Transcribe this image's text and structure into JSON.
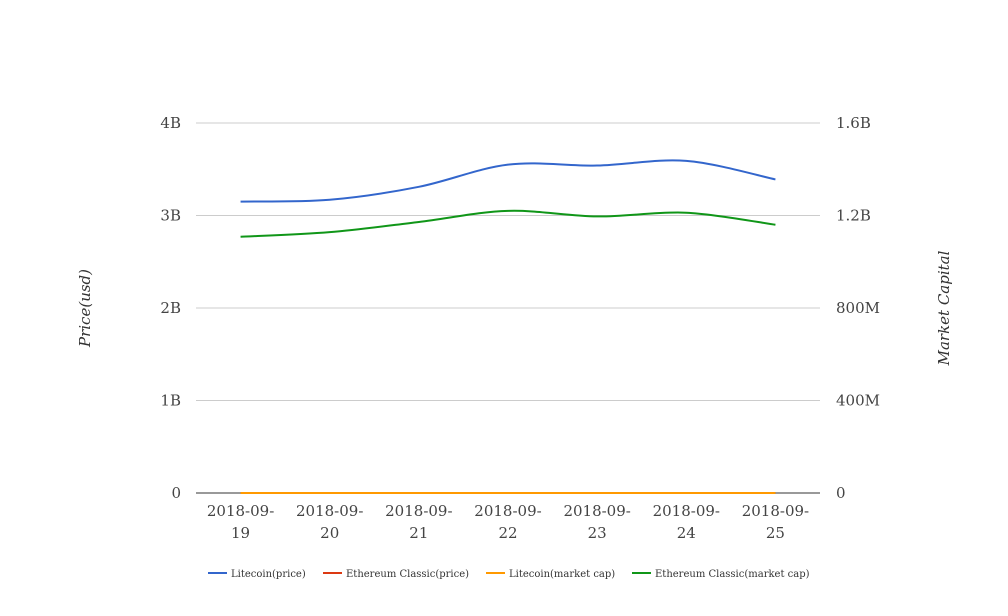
{
  "chart_data": {
    "type": "line",
    "x": [
      "2018-09-19",
      "2018-09-20",
      "2018-09-21",
      "2018-09-22",
      "2018-09-23",
      "2018-09-24",
      "2018-09-25"
    ],
    "x_tick_lines": [
      [
        "2018-09-",
        "19"
      ],
      [
        "2018-09-",
        "20"
      ],
      [
        "2018-09-",
        "21"
      ],
      [
        "2018-09-",
        "22"
      ],
      [
        "2018-09-",
        "23"
      ],
      [
        "2018-09-",
        "24"
      ],
      [
        "2018-09-",
        "25"
      ]
    ],
    "ylabel": "Price(usd)",
    "y2label": "Market Capital",
    "ylim": [
      0,
      4000000000
    ],
    "y2lim": [
      0,
      1600000000
    ],
    "y_ticks": [
      0,
      1000000000,
      2000000000,
      3000000000,
      4000000000
    ],
    "y_tick_labels": [
      "0",
      "1B",
      "2B",
      "3B",
      "4B"
    ],
    "y2_ticks": [
      0,
      400000000,
      800000000,
      1200000000,
      1600000000
    ],
    "y2_tick_labels": [
      "0",
      "400M",
      "800M",
      "1.2B",
      "1.6B"
    ],
    "grid": true,
    "legend_position": "bottom",
    "series": [
      {
        "name": "Litecoin(price)",
        "axis": "left",
        "color": "#3366cc",
        "values": [
          3150000000,
          3170000000,
          3310000000,
          3550000000,
          3540000000,
          3590000000,
          3390000000
        ]
      },
      {
        "name": "Ethereum Classic(price)",
        "axis": "left",
        "color": "#dc3912",
        "values": [
          0,
          0,
          0,
          0,
          0,
          0,
          0
        ]
      },
      {
        "name": "Litecoin(market cap)",
        "axis": "left",
        "color": "#ff9900",
        "values": [
          0,
          0,
          0,
          0,
          0,
          0,
          0
        ]
      },
      {
        "name": "Ethereum Classic(market cap)",
        "axis": "left",
        "color": "#109618",
        "values": [
          2770000000,
          2820000000,
          2930000000,
          3050000000,
          2990000000,
          3030000000,
          2900000000
        ]
      }
    ]
  }
}
